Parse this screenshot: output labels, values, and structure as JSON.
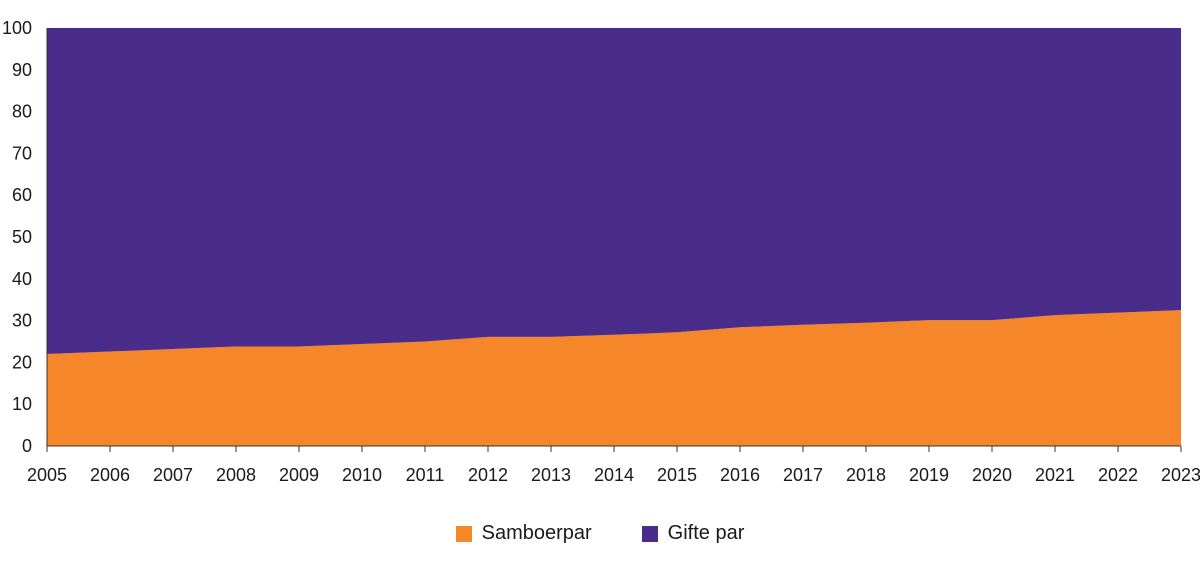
{
  "chart_data": {
    "type": "area",
    "stacked": true,
    "x": [
      2005,
      2006,
      2007,
      2008,
      2009,
      2010,
      2011,
      2012,
      2013,
      2014,
      2015,
      2016,
      2017,
      2018,
      2019,
      2020,
      2021,
      2022,
      2023
    ],
    "x_tick_labels": [
      "2005",
      "2006",
      "2007",
      "2008",
      "2009",
      "2010",
      "2011",
      "2012",
      "2013",
      "2014",
      "2015",
      "2016",
      "2017",
      "2018",
      "2019",
      "2020",
      "2021",
      "2022",
      "2023"
    ],
    "y_tick_labels": [
      "0",
      "10",
      "20",
      "30",
      "40",
      "50",
      "60",
      "70",
      "80",
      "90",
      "100"
    ],
    "ylim": [
      0,
      100
    ],
    "grid": false,
    "legend_position": "bottom-center",
    "series": [
      {
        "name": "Samboerpar",
        "color": "#f5862a",
        "values": [
          22.0,
          22.6,
          23.2,
          23.8,
          23.8,
          24.4,
          25.0,
          26.1,
          26.1,
          26.6,
          27.2,
          28.4,
          29.0,
          29.5,
          30.1,
          30.1,
          31.3,
          31.9,
          32.5
        ]
      },
      {
        "name": "Gifte par",
        "color": "#4a2d8a",
        "values": [
          78.0,
          77.4,
          76.8,
          76.2,
          76.2,
          75.6,
          75.0,
          73.9,
          73.9,
          73.4,
          72.8,
          71.6,
          71.0,
          70.5,
          69.9,
          69.9,
          68.7,
          68.1,
          67.5
        ]
      }
    ]
  }
}
